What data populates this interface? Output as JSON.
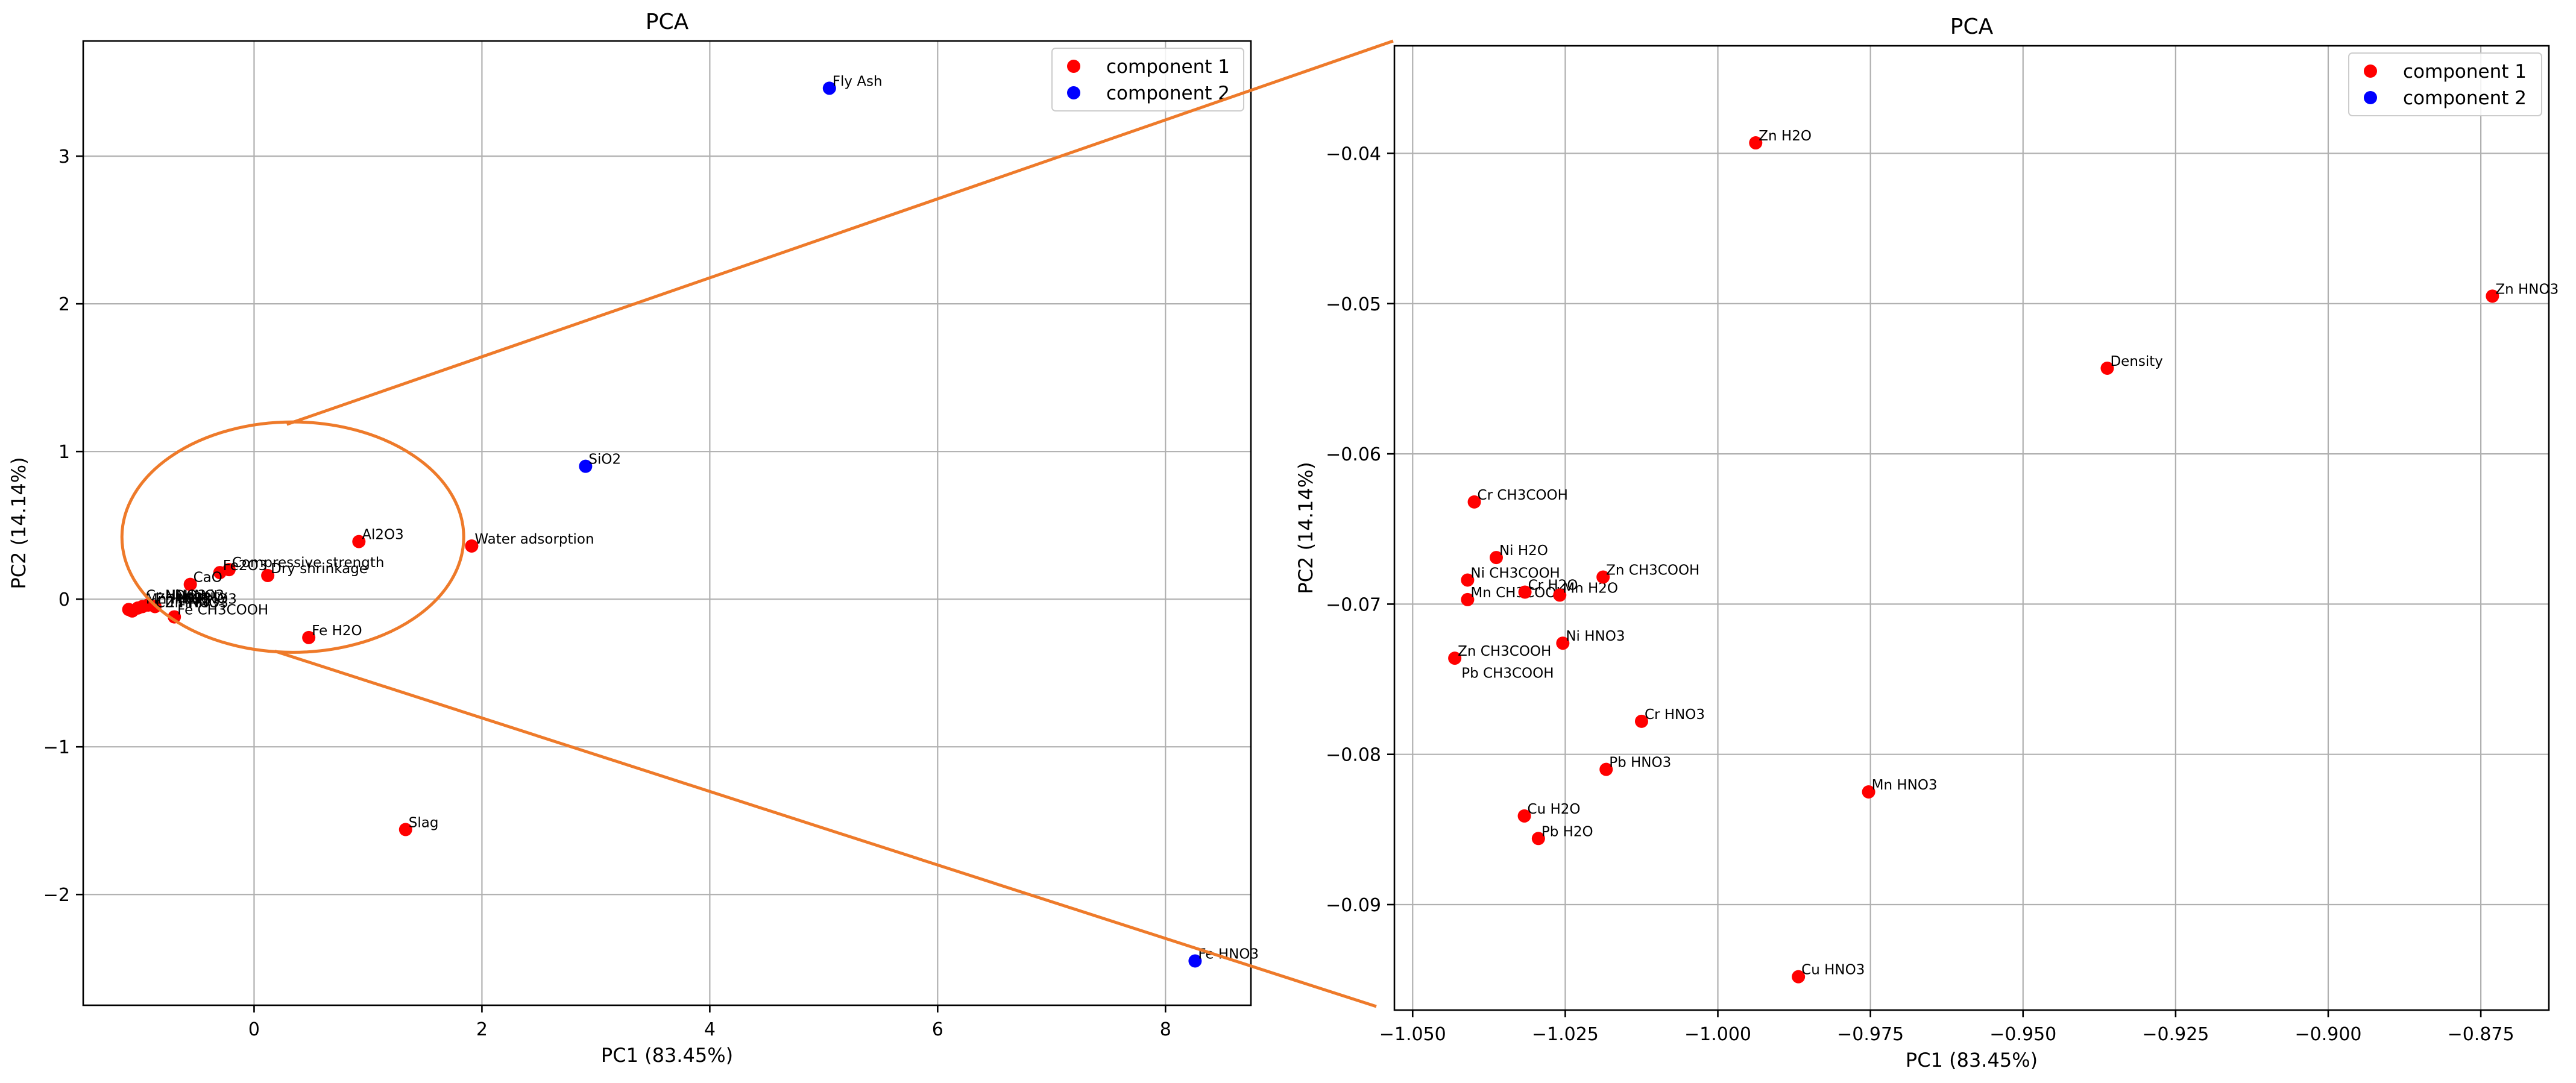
{
  "annotation": {
    "color": "#ee7a2a"
  },
  "chart_data": [
    {
      "type": "scatter",
      "title": "PCA",
      "xlabel": "PC1 (83.45%)",
      "ylabel": "PC2 (14.14%)",
      "xlim": [
        -1.5,
        8.75
      ],
      "ylim": [
        -2.75,
        3.78
      ],
      "xticks": [
        0,
        2,
        4,
        6,
        8
      ],
      "xtick_labels": [
        "0",
        "2",
        "4",
        "6",
        "8"
      ],
      "yticks": [
        -2,
        -1,
        0,
        1,
        2,
        3
      ],
      "ytick_labels": [
        "−2",
        "−1",
        "0",
        "1",
        "2",
        "3"
      ],
      "grid": true,
      "legend": {
        "position": "top-right",
        "entries": [
          {
            "label": "component 1",
            "color": "#ff0000"
          },
          {
            "label": "component 2",
            "color": "#0000ff"
          }
        ]
      },
      "series": [
        {
          "name": "component 1",
          "color": "#ff0000",
          "points": [
            {
              "x": 0.92,
              "y": 0.39,
              "label": "Al2O3"
            },
            {
              "x": 1.91,
              "y": 0.36,
              "label": "Water adsorption"
            },
            {
              "x": -0.22,
              "y": 0.2,
              "label": "Compressive strength"
            },
            {
              "x": -0.3,
              "y": 0.18,
              "label": "Fe2O3"
            },
            {
              "x": 0.12,
              "y": 0.16,
              "label": "Dry shrinkage"
            },
            {
              "x": -0.56,
              "y": 0.1,
              "label": "CaO"
            },
            {
              "x": 0.48,
              "y": -0.26,
              "label": "Fe H2O"
            },
            {
              "x": 1.33,
              "y": -1.56,
              "label": "Slag"
            },
            {
              "x": -0.7,
              "y": -0.12,
              "label": "Fe CH3COOH"
            },
            {
              "x": -1.07,
              "y": -0.08,
              "label": ""
            },
            {
              "x": -1.02,
              "y": -0.06,
              "label": ""
            },
            {
              "x": -1.1,
              "y": -0.07,
              "label": ""
            },
            {
              "x": -0.98,
              "y": -0.05,
              "label": ""
            },
            {
              "x": -0.93,
              "y": -0.04,
              "label": ""
            },
            {
              "x": -0.87,
              "y": -0.05,
              "label": ""
            }
          ]
        },
        {
          "name": "component 2",
          "color": "#0000ff",
          "points": [
            {
              "x": 5.05,
              "y": 3.46,
              "label": "Fly Ash"
            },
            {
              "x": 2.91,
              "y": 0.9,
              "label": "SiO2"
            },
            {
              "x": 8.26,
              "y": -2.45,
              "label": "Fe HNO3"
            }
          ]
        }
      ],
      "cluster_labels": [
        "Cr HNO3",
        "Zn H2O",
        "Zn HNO3",
        "Density",
        "Mn HNO3",
        "Cu HNO3",
        "Ni HNO3",
        "Pb HNO3"
      ],
      "annotations": [
        {
          "type": "ellipse",
          "description": "zoom region",
          "center": [
            0.34,
            0.42
          ],
          "rx_data": 1.5,
          "ry_data": 0.78
        }
      ]
    },
    {
      "type": "scatter",
      "title": "PCA",
      "xlabel": "PC1 (83.45%)",
      "ylabel": "PC2 (14.14%)",
      "xlim": [
        -1.05299,
        -0.86385
      ],
      "ylim": [
        -0.09702,
        -0.03284
      ],
      "xticks": [
        -1.05,
        -1.025,
        -1.0,
        -0.975,
        -0.95,
        -0.925,
        -0.9,
        -0.875
      ],
      "xtick_labels": [
        "−1.050",
        "−1.025",
        "−1.000",
        "−0.975",
        "−0.950",
        "−0.925",
        "−0.900",
        "−0.875"
      ],
      "yticks": [
        -0.09,
        -0.08,
        -0.07,
        -0.06,
        -0.05,
        -0.04
      ],
      "ytick_labels": [
        "−0.09",
        "−0.08",
        "−0.07",
        "−0.06",
        "−0.05",
        "−0.04"
      ],
      "grid": true,
      "legend": {
        "position": "top-right",
        "entries": [
          {
            "label": "component 1",
            "color": "#ff0000"
          },
          {
            "label": "component 2",
            "color": "#0000ff"
          }
        ]
      },
      "series": [
        {
          "name": "component 1",
          "color": "#ff0000",
          "points": [
            {
              "x": -0.9938,
              "y": -0.0393,
              "label": "Zn H2O"
            },
            {
              "x": -0.8731,
              "y": -0.0495,
              "label": "Zn HNO3"
            },
            {
              "x": -0.9362,
              "y": -0.0543,
              "label": "Density"
            },
            {
              "x": -1.0399,
              "y": -0.0632,
              "label": "Cr CH3COOH"
            },
            {
              "x": -1.0363,
              "y": -0.0669,
              "label": "Ni H2O"
            },
            {
              "x": -1.041,
              "y": -0.0684,
              "label": "Ni CH3COOH"
            },
            {
              "x": -1.041,
              "y": -0.0697,
              "label": "Mn CH3COOH"
            },
            {
              "x": -1.0316,
              "y": -0.0692,
              "label": "Cr H2O"
            },
            {
              "x": -1.0259,
              "y": -0.0694,
              "label": "Mn H2O"
            },
            {
              "x": -1.0188,
              "y": -0.0682,
              "label": "Zn CH3COOH"
            },
            {
              "x": -1.0254,
              "y": -0.0726,
              "label": "Ni HNO3"
            },
            {
              "x": -1.0431,
              "y": -0.0736,
              "label": "Zn CH3COOH"
            },
            {
              "x": -1.0125,
              "y": -0.0778,
              "label": "Cr HNO3"
            },
            {
              "x": -1.0183,
              "y": -0.081,
              "label": "Pb HNO3"
            },
            {
              "x": -0.9753,
              "y": -0.0825,
              "label": "Mn HNO3"
            },
            {
              "x": -1.0317,
              "y": -0.0841,
              "label": "Cu H2O"
            },
            {
              "x": -1.0294,
              "y": -0.0856,
              "label": "Pb H2O"
            },
            {
              "x": -0.9868,
              "y": -0.0948,
              "label": "Cu HNO3"
            }
          ]
        },
        {
          "name": "component 2",
          "color": "#0000ff",
          "points": []
        }
      ],
      "extra_labels": [
        {
          "x": -1.0425,
          "y": -0.0745,
          "label": "Pb CH3COOH"
        }
      ]
    }
  ]
}
